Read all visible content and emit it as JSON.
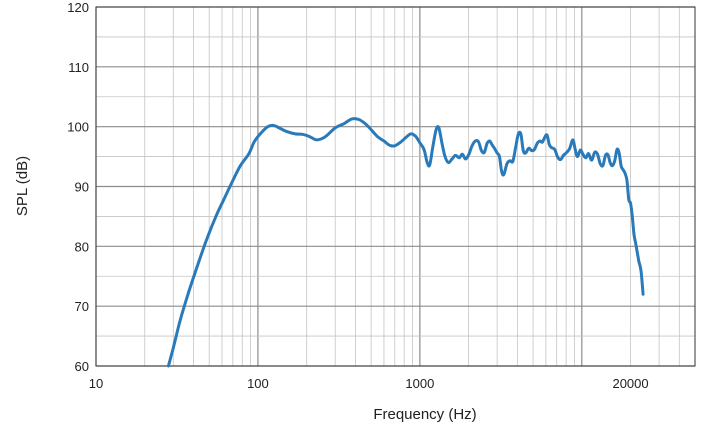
{
  "chart_data": {
    "type": "line",
    "title": "",
    "xlabel": "Frequency (Hz)",
    "ylabel": "SPL (dB)",
    "x_scale": "log",
    "xlim": [
      10,
      50000
    ],
    "ylim": [
      60,
      120
    ],
    "x_tick_labels": [
      {
        "value": 10,
        "label": "10"
      },
      {
        "value": 100,
        "label": "100"
      },
      {
        "value": 1000,
        "label": "1000"
      },
      {
        "value": 20000,
        "label": "20000"
      }
    ],
    "y_tick_labels": [
      {
        "value": 60,
        "label": "60"
      },
      {
        "value": 70,
        "label": "70"
      },
      {
        "value": 80,
        "label": "80"
      },
      {
        "value": 90,
        "label": "90"
      },
      {
        "value": 100,
        "label": "100"
      },
      {
        "value": 110,
        "label": "110"
      },
      {
        "value": 120,
        "label": "120"
      }
    ],
    "grid": true,
    "series": [
      {
        "color": "#2a7ab9",
        "points": [
          [
            28,
            60
          ],
          [
            30,
            63
          ],
          [
            33,
            67.5
          ],
          [
            37,
            72
          ],
          [
            42,
            76.5
          ],
          [
            48,
            81
          ],
          [
            55,
            85
          ],
          [
            62,
            88
          ],
          [
            70,
            91
          ],
          [
            78,
            93.5
          ],
          [
            88,
            95.5
          ],
          [
            95,
            97.5
          ],
          [
            105,
            99
          ],
          [
            115,
            100
          ],
          [
            125,
            100.2
          ],
          [
            135,
            99.8
          ],
          [
            150,
            99.2
          ],
          [
            170,
            98.8
          ],
          [
            190,
            98.7
          ],
          [
            210,
            98.3
          ],
          [
            230,
            97.8
          ],
          [
            260,
            98.3
          ],
          [
            300,
            99.8
          ],
          [
            340,
            100.5
          ],
          [
            380,
            101.3
          ],
          [
            420,
            101.2
          ],
          [
            460,
            100.5
          ],
          [
            500,
            99.5
          ],
          [
            550,
            98.3
          ],
          [
            600,
            97.6
          ],
          [
            650,
            96.9
          ],
          [
            700,
            96.8
          ],
          [
            760,
            97.4
          ],
          [
            820,
            98.2
          ],
          [
            880,
            98.8
          ],
          [
            940,
            98.4
          ],
          [
            1000,
            97.3
          ],
          [
            1060,
            96.2
          ],
          [
            1110,
            94.0
          ],
          [
            1150,
            93.6
          ],
          [
            1200,
            96.5
          ],
          [
            1260,
            99.5
          ],
          [
            1310,
            99.8
          ],
          [
            1370,
            97.2
          ],
          [
            1430,
            95.0
          ],
          [
            1500,
            94.0
          ],
          [
            1580,
            94.6
          ],
          [
            1660,
            95.2
          ],
          [
            1750,
            94.8
          ],
          [
            1830,
            95.4
          ],
          [
            1910,
            94.6
          ],
          [
            2000,
            95.3
          ],
          [
            2100,
            96.8
          ],
          [
            2200,
            97.6
          ],
          [
            2300,
            97.5
          ],
          [
            2400,
            96.0
          ],
          [
            2500,
            95.7
          ],
          [
            2600,
            97.2
          ],
          [
            2700,
            97.6
          ],
          [
            2800,
            96.9
          ],
          [
            2900,
            96.3
          ],
          [
            3000,
            95.6
          ],
          [
            3100,
            95.0
          ],
          [
            3200,
            92.5
          ],
          [
            3300,
            92.0
          ],
          [
            3450,
            93.8
          ],
          [
            3600,
            94.3
          ],
          [
            3750,
            94.2
          ],
          [
            3900,
            96.5
          ],
          [
            4050,
            98.7
          ],
          [
            4200,
            98.8
          ],
          [
            4350,
            96.0
          ],
          [
            4500,
            95.6
          ],
          [
            4700,
            96.4
          ],
          [
            4900,
            96.0
          ],
          [
            5100,
            96.2
          ],
          [
            5300,
            97.2
          ],
          [
            5500,
            97.6
          ],
          [
            5700,
            97.4
          ],
          [
            5900,
            98.2
          ],
          [
            6100,
            98.6
          ],
          [
            6300,
            97.0
          ],
          [
            6500,
            96.5
          ],
          [
            6800,
            96.2
          ],
          [
            7100,
            94.9
          ],
          [
            7400,
            94.5
          ],
          [
            7700,
            95.2
          ],
          [
            8000,
            95.6
          ],
          [
            8400,
            96.3
          ],
          [
            8800,
            97.8
          ],
          [
            9100,
            96.2
          ],
          [
            9400,
            95.0
          ],
          [
            9800,
            96.1
          ],
          [
            10200,
            95.3
          ],
          [
            10600,
            94.8
          ],
          [
            11000,
            95.5
          ],
          [
            11500,
            94.4
          ],
          [
            12000,
            95.7
          ],
          [
            12500,
            95.4
          ],
          [
            13000,
            93.8
          ],
          [
            13500,
            93.5
          ],
          [
            14000,
            95.2
          ],
          [
            14500,
            95.3
          ],
          [
            15000,
            93.9
          ],
          [
            15500,
            93.5
          ],
          [
            16000,
            94.4
          ],
          [
            16500,
            96.2
          ],
          [
            17000,
            95.6
          ],
          [
            17500,
            93.4
          ],
          [
            18000,
            92.8
          ],
          [
            18500,
            92.2
          ],
          [
            19000,
            91.0
          ],
          [
            19500,
            87.8
          ],
          [
            20000,
            87.2
          ],
          [
            20500,
            85.0
          ],
          [
            21000,
            82.0
          ],
          [
            21500,
            80.5
          ],
          [
            22000,
            79.0
          ],
          [
            22500,
            77.5
          ],
          [
            23000,
            76.5
          ],
          [
            23300,
            75.5
          ],
          [
            23600,
            73.8
          ],
          [
            23900,
            72.0
          ]
        ]
      }
    ]
  }
}
